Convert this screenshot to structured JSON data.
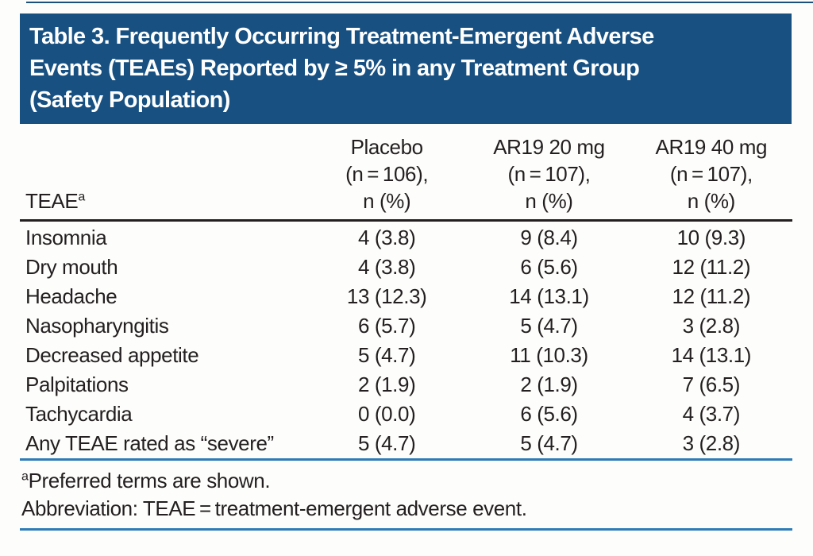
{
  "title": {
    "lines": [
      "Table 3. Frequently Occurring Treatment-Emergent Adverse",
      "Events (TEAEs) Reported by ≥ 5% in any Treatment Group",
      "(Safety Population)"
    ]
  },
  "colors": {
    "banner_bg": "#175081",
    "banner_text": "#ffffff",
    "body_text": "#231f20",
    "blue_rule": "#2e7cb5",
    "header_rule": "#231f20",
    "page_bg": "#fdfdfb"
  },
  "table": {
    "header": {
      "row_label": "TEAE",
      "row_label_sup": "a",
      "columns": [
        {
          "line1": "Placebo",
          "line2": "(n = 106),",
          "line3": "n (%)"
        },
        {
          "line1": "AR19 20 mg",
          "line2": "(n = 107),",
          "line3": "n (%)"
        },
        {
          "line1": "AR19 40 mg",
          "line2": "(n = 107),",
          "line3": "n (%)"
        }
      ]
    },
    "rows": [
      {
        "label": "Insomnia",
        "values": [
          "4 (3.8)",
          "9 (8.4)",
          "10 (9.3)"
        ]
      },
      {
        "label": "Dry mouth",
        "values": [
          "4 (3.8)",
          "6 (5.6)",
          "12 (11.2)"
        ]
      },
      {
        "label": "Headache",
        "values": [
          "13 (12.3)",
          "14 (13.1)",
          "12 (11.2)"
        ]
      },
      {
        "label": "Nasopharyngitis",
        "values": [
          "6 (5.7)",
          "5 (4.7)",
          "3 (2.8)"
        ]
      },
      {
        "label": "Decreased appetite",
        "values": [
          "5 (4.7)",
          "11 (10.3)",
          "14 (13.1)"
        ]
      },
      {
        "label": "Palpitations",
        "values": [
          "2 (1.9)",
          "2 (1.9)",
          "7 (6.5)"
        ]
      },
      {
        "label": "Tachycardia",
        "values": [
          "0 (0.0)",
          "6 (5.6)",
          "4 (3.7)"
        ]
      },
      {
        "label": "Any TEAE rated as “severe”",
        "values": [
          "5 (4.7)",
          "5 (4.7)",
          "3 (2.8)"
        ]
      }
    ]
  },
  "footnotes": {
    "note_sup": "a",
    "note_text": "Preferred terms are shown.",
    "abbreviation": "Abbreviation: TEAE = treatment-emergent adverse event."
  }
}
